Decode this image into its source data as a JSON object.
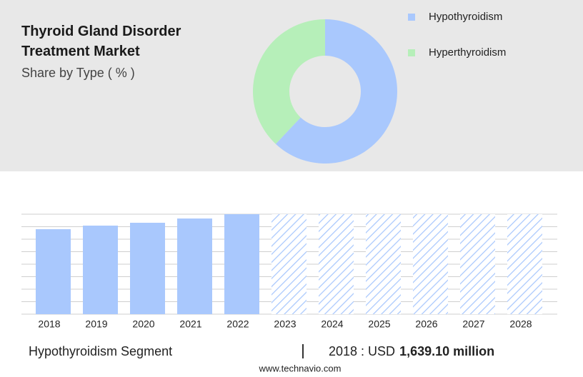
{
  "chart_data": [
    {
      "type": "pie",
      "title": "Thyroid Gland Disorder Treatment Market",
      "subtitle": "Share by Type ( % )",
      "categories": [
        "Hypothyroidism",
        "Hyperthyroidism"
      ],
      "values": [
        62,
        38
      ],
      "colors": [
        "#a9c8fd",
        "#b6efb9"
      ]
    },
    {
      "type": "bar",
      "categories": [
        "2018",
        "2019",
        "2020",
        "2021",
        "2022",
        "2023",
        "2024",
        "2025",
        "2026",
        "2027",
        "2028"
      ],
      "values": [
        1639.1,
        1708,
        1763,
        1845,
        1928,
        null,
        null,
        null,
        null,
        null,
        null
      ],
      "color": "#a9c8fd",
      "ylim": [
        0,
        1928
      ]
    }
  ],
  "footer": {
    "segment": "Hypothyroidism Segment",
    "lead": "2018 : USD",
    "value_label": "1,639.10 million",
    "source": "www.technavio.com"
  }
}
